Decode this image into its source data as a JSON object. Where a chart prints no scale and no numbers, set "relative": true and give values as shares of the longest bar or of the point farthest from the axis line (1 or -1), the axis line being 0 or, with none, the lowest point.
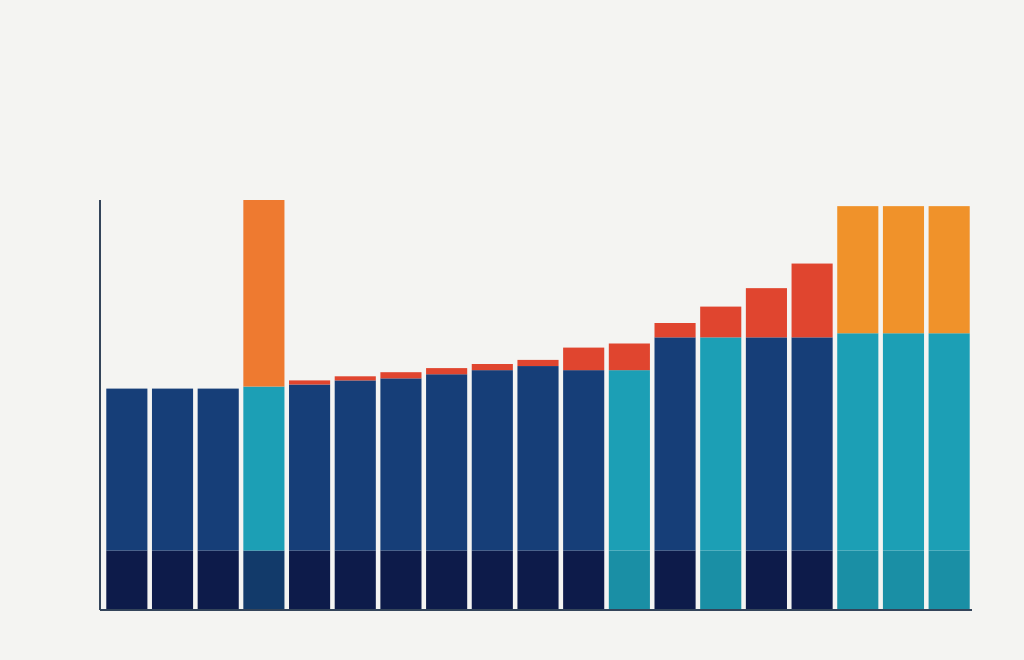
{
  "chart_data": {
    "type": "bar",
    "relative": true,
    "stacked": true,
    "categories": [
      null,
      null,
      null,
      null,
      null,
      null,
      null,
      null,
      null,
      null,
      null,
      null,
      null,
      null,
      null,
      null,
      null,
      null,
      null
    ],
    "series": [
      {
        "colors": [
          "#0d1b4a",
          "#0d1b4a",
          "#0d1b4a",
          "#123a6a",
          "#0d1b4a",
          "#0d1b4a",
          "#0d1b4a",
          "#0d1b4a",
          "#0d1b4a",
          "#0d1b4a",
          "#0d1b4a",
          "#1a8fa5",
          "#0d1b4a",
          "#1a8fa5",
          "#0d1b4a",
          "#0d1b4a",
          "#1a8fa5",
          "#1a8fa5",
          "#1a8fa5"
        ],
        "values": [
          0.145,
          0.145,
          0.145,
          0.145,
          0.145,
          0.145,
          0.145,
          0.145,
          0.145,
          0.145,
          0.145,
          0.145,
          0.145,
          0.145,
          0.145,
          0.145,
          0.145,
          0.145,
          0.145
        ]
      },
      {
        "colors": [
          "#163e78",
          "#163e78",
          "#163e78",
          "#1c9fb5",
          "#163e78",
          "#163e78",
          "#163e78",
          "#163e78",
          "#163e78",
          "#163e78",
          "#163e78",
          "#1c9fb5",
          "#163e78",
          "#1c9fb5",
          "#163e78",
          "#163e78",
          "#1c9fb5",
          "#1c9fb5",
          "#1c9fb5"
        ],
        "values": [
          0.395,
          0.395,
          0.395,
          0.4,
          0.405,
          0.415,
          0.42,
          0.43,
          0.44,
          0.45,
          0.44,
          0.44,
          0.52,
          0.52,
          0.52,
          0.52,
          0.53,
          0.53,
          0.53
        ]
      },
      {
        "colors": [
          "#e0452f",
          "#e0452f",
          "#e0452f",
          "#ee7a30",
          "#e0452f",
          "#e0452f",
          "#e0452f",
          "#e0452f",
          "#e0452f",
          "#e0452f",
          "#e0452f",
          "#e0452f",
          "#e0452f",
          "#e0452f",
          "#e0452f",
          "#e0452f",
          "#f0922a",
          "#f0922a",
          "#f0922a"
        ],
        "values": [
          0,
          0,
          0,
          0.455,
          0.01,
          0.01,
          0.015,
          0.015,
          0.015,
          0.015,
          0.055,
          0.065,
          0.035,
          0.075,
          0.12,
          0.18,
          0.31,
          0.31,
          0.31
        ]
      }
    ]
  }
}
